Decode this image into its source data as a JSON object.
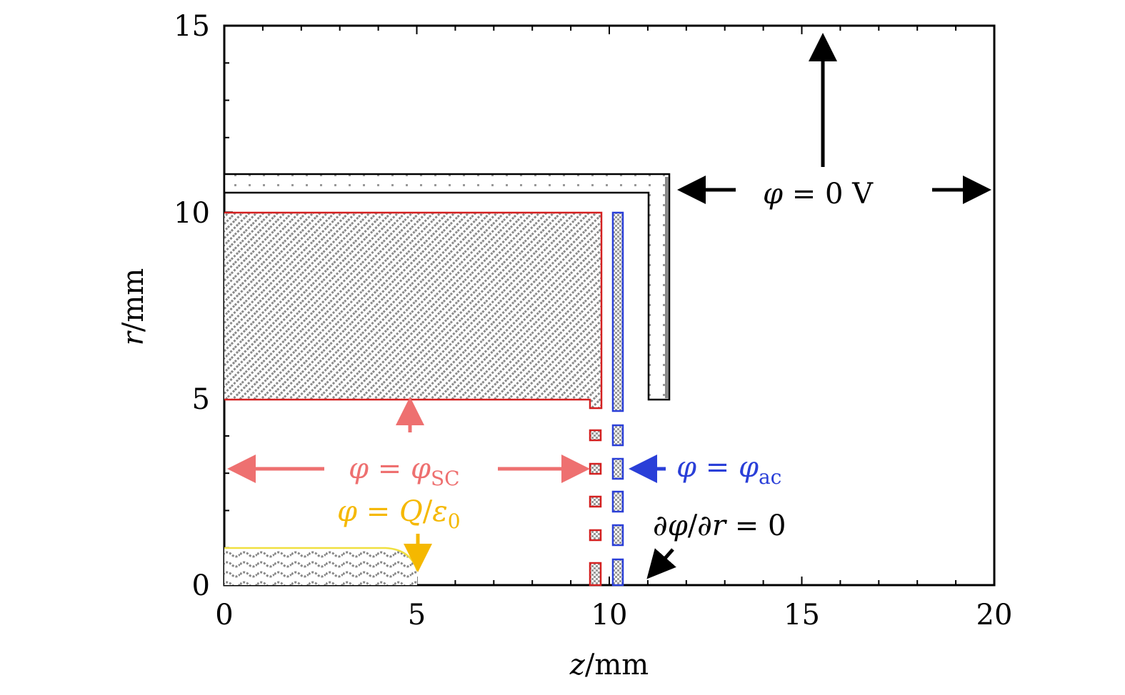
{
  "axes": {
    "x_label": {
      "var": "z",
      "unit": "/mm"
    },
    "y_label": {
      "var": "r",
      "unit": "/mm"
    },
    "xlim": [
      0,
      20
    ],
    "ylim": [
      0,
      15
    ],
    "x_ticks": [
      "0",
      "5",
      "10",
      "15",
      "20"
    ],
    "y_ticks": [
      "0",
      "5",
      "10",
      "15"
    ]
  },
  "annotations": {
    "ground": {
      "phi": "φ",
      "eq": " = 0 V",
      "color": "#000000"
    },
    "screen": {
      "phi": "φ",
      "eq": " = ",
      "phi2": "φ",
      "sub": "SC",
      "color": "#ee7070"
    },
    "accel": {
      "phi": "φ",
      "eq": " = ",
      "phi2": "φ",
      "sub": "ac",
      "color": "#2a3fd8"
    },
    "charge": {
      "phi": "φ",
      "eq": " = ",
      "q": "Q",
      "slash": "/",
      "eps": "ε",
      "sub": "0",
      "color": "#f5b800"
    },
    "neumann": {
      "d1": "∂",
      "phi": "φ",
      "slash": "/∂",
      "r": "r",
      "eq": " = 0",
      "color": "#000000"
    }
  },
  "colors": {
    "frame": "#000000",
    "screen_grid": "#d42020",
    "accel_grid": "#2a3fd8",
    "plasma_boundary": "#f0e040",
    "hatch": "#777777"
  }
}
